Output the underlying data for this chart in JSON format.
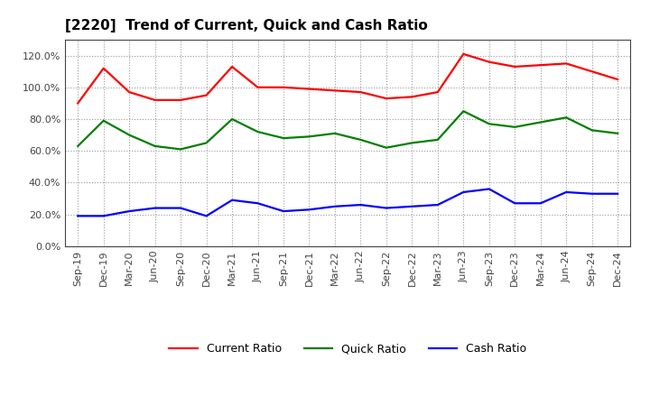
{
  "title": "[2220]  Trend of Current, Quick and Cash Ratio",
  "x_labels": [
    "Sep-19",
    "Dec-19",
    "Mar-20",
    "Jun-20",
    "Sep-20",
    "Dec-20",
    "Mar-21",
    "Jun-21",
    "Sep-21",
    "Dec-21",
    "Mar-22",
    "Jun-22",
    "Sep-22",
    "Dec-22",
    "Mar-23",
    "Jun-23",
    "Sep-23",
    "Dec-23",
    "Mar-24",
    "Jun-24",
    "Sep-24",
    "Dec-24"
  ],
  "current_ratio": [
    0.9,
    1.12,
    0.97,
    0.92,
    0.92,
    0.95,
    1.13,
    1.0,
    1.0,
    0.99,
    0.98,
    0.97,
    0.93,
    0.94,
    0.97,
    1.21,
    1.16,
    1.13,
    1.14,
    1.15,
    1.1,
    1.05
  ],
  "quick_ratio": [
    0.63,
    0.79,
    0.7,
    0.63,
    0.61,
    0.65,
    0.8,
    0.72,
    0.68,
    0.69,
    0.71,
    0.67,
    0.62,
    0.65,
    0.67,
    0.85,
    0.77,
    0.75,
    0.78,
    0.81,
    0.73,
    0.71
  ],
  "cash_ratio": [
    0.19,
    0.19,
    0.22,
    0.24,
    0.24,
    0.19,
    0.29,
    0.27,
    0.22,
    0.23,
    0.25,
    0.26,
    0.24,
    0.25,
    0.26,
    0.34,
    0.36,
    0.27,
    0.27,
    0.34,
    0.33,
    0.33
  ],
  "current_color": "#FF0000",
  "quick_color": "#008000",
  "cash_color": "#0000FF",
  "ylim": [
    0.0,
    1.3
  ],
  "yticks": [
    0.0,
    0.2,
    0.4,
    0.6,
    0.8,
    1.0,
    1.2
  ],
  "background_color": "#FFFFFF",
  "grid_color": "#999999",
  "line_width": 1.6,
  "title_fontsize": 11,
  "tick_fontsize": 8,
  "legend_fontsize": 9
}
